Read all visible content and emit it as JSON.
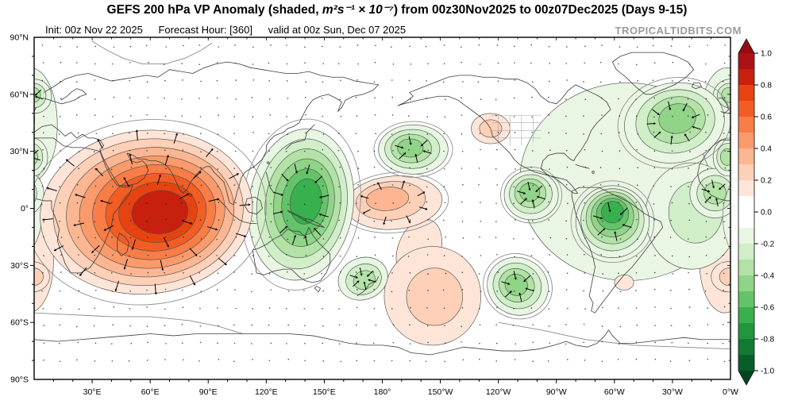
{
  "header": {
    "title_prefix": "GEFS 200 hPa VP Anomaly (shaded, ",
    "title_math": "m²s⁻¹ × 10⁻⁷",
    "title_suffix": ") from 00z30Nov2025 to 00z07Dec2025 (Days 9-15)",
    "init_label": "Init: 00z Nov 22 2025",
    "forecast_hour_label": "Forecast Hour: [360]",
    "valid_label": "valid at 00z Sun, Dec 07 2025",
    "watermark": "TROPICALTIDBITS.COM"
  },
  "chart_data": {
    "type": "heatmap",
    "title": "GEFS 200 hPa VP Anomaly (shaded) from 00z30Nov2025 to 00z07Dec2025 (Days 9-15)",
    "variable": "200 hPa velocity potential anomaly",
    "units": "m2 s-1 x 10-7",
    "projection": "cylindrical, longitudes 0E-360E, latitudes 90N-90S",
    "lat_ticks": [
      {
        "value": 90,
        "label": "90°N"
      },
      {
        "value": 60,
        "label": "60°N"
      },
      {
        "value": 30,
        "label": "30°N"
      },
      {
        "value": 0,
        "label": "0°"
      },
      {
        "value": -30,
        "label": "30°S"
      },
      {
        "value": -60,
        "label": "60°S"
      },
      {
        "value": -90,
        "label": "90°S"
      }
    ],
    "lon_ticks": [
      {
        "value": 30,
        "label": "30°E"
      },
      {
        "value": 60,
        "label": "60°E"
      },
      {
        "value": 90,
        "label": "90°E"
      },
      {
        "value": 120,
        "label": "120°E"
      },
      {
        "value": 150,
        "label": "150°E"
      },
      {
        "value": 180,
        "label": "180°"
      },
      {
        "value": 210,
        "label": "150°W"
      },
      {
        "value": 240,
        "label": "120°W"
      },
      {
        "value": 270,
        "label": "90°W"
      },
      {
        "value": 300,
        "label": "60°W"
      },
      {
        "value": 330,
        "label": "30°W"
      },
      {
        "value": 360,
        "label": "0°W"
      }
    ],
    "colorbar": {
      "min": -1.0,
      "max": 1.0,
      "step": 0.1,
      "tick_labels": [
        "1.0",
        "0.8",
        "0.6",
        "0.4",
        "0.2",
        "0.0",
        "-0.2",
        "-0.4",
        "-0.6",
        "-0.8",
        "-1.0"
      ],
      "positive_colors": [
        "#fee5d8",
        "#fdd0b7",
        "#fcb692",
        "#fb9b6b",
        "#f97d46",
        "#f25d24",
        "#e64310",
        "#c8200e",
        "#ad1016"
      ],
      "negative_colors": [
        "#e8f6e3",
        "#d0eec8",
        "#b2e2a6",
        "#8fd487",
        "#63c368",
        "#38b04d",
        "#21963f",
        "#117a33",
        "#085e28"
      ],
      "positive_arrow_color": "#950c12",
      "negative_arrow_color": "#03441d",
      "zero_color": "#ffffff"
    },
    "anomaly_centers": [
      {
        "name": "indian-ocean-positive",
        "sign": 1,
        "peak": 0.85,
        "outer": {
          "lon": 58,
          "lat": -2,
          "rx": 55,
          "ry": 43,
          "rot": -6
        },
        "core": {
          "lon": 66,
          "lat": -2
        }
      },
      {
        "name": "south-africa-edge-positive",
        "sign": 1,
        "peak": 0.15,
        "outer": {
          "lon": -3,
          "lat": -28,
          "rx": 13,
          "ry": 27,
          "rot": 0
        },
        "core": {
          "lon": -3,
          "lat": -28
        }
      },
      {
        "name": "dateline-positive",
        "sign": 1,
        "peak": 0.35,
        "outer": {
          "lon": 186,
          "lat": 3,
          "rx": 25,
          "ry": 14,
          "rot": -5
        },
        "core": {
          "lon": 181,
          "lat": 6
        }
      },
      {
        "name": "south-pacific-bridge-positive",
        "sign": 1,
        "peak": 0.15,
        "outer": {
          "lon": 199,
          "lat": -22,
          "rx": 11,
          "ry": 17,
          "rot": 20
        },
        "core": {
          "lon": 199,
          "lat": -22
        }
      },
      {
        "name": "south-pacific-positive",
        "sign": 1,
        "peak": 0.25,
        "outer": {
          "lon": 206,
          "lat": -46,
          "rx": 25,
          "ry": 26,
          "rot": 0
        },
        "core": {
          "lon": 208,
          "lat": -47
        }
      },
      {
        "name": "western-us-positive",
        "sign": 1,
        "peak": 0.25,
        "outer": {
          "lon": 236,
          "lat": 42,
          "rx": 10,
          "ry": 8,
          "rot": 0
        },
        "core": {
          "lon": 236,
          "lat": 42
        }
      },
      {
        "name": "uruguay-positive",
        "sign": 1,
        "peak": 0.15,
        "outer": {
          "lon": 305,
          "lat": -39,
          "rx": 5,
          "ry": 4,
          "rot": 0
        },
        "core": {
          "lon": 305,
          "lat": -39
        }
      },
      {
        "name": "south-atlantic-positive",
        "sign": 1,
        "peak": 0.25,
        "outer": {
          "lon": 359,
          "lat": -36,
          "rx": 9,
          "ry": 8,
          "rot": 0
        },
        "core": {
          "lon": 360,
          "lat": -36
        }
      },
      {
        "name": "maritime-continent-negative",
        "sign": -1,
        "peak": 0.65,
        "outer": {
          "lon": 138,
          "lat": 2,
          "rx": 27,
          "ry": 40,
          "rot": 8
        },
        "core": {
          "lon": 141,
          "lat": 4
        }
      },
      {
        "name": "new-zealand-negative",
        "sign": -1,
        "peak": 0.35,
        "outer": {
          "lon": 170,
          "lat": -37,
          "rx": 13,
          "ry": 11,
          "rot": -20
        },
        "core": {
          "lon": 171,
          "lat": -38
        }
      },
      {
        "name": "north-pacific-negative",
        "sign": -1,
        "peak": 0.45,
        "outer": {
          "lon": 196,
          "lat": 31,
          "rx": 18,
          "ry": 13,
          "rot": 0
        },
        "core": {
          "lon": 194,
          "lat": 32
        }
      },
      {
        "name": "east-pacific-negative",
        "sign": -1,
        "peak": 0.45,
        "outer": {
          "lon": 257,
          "lat": 7,
          "rx": 14,
          "ry": 13,
          "rot": 0
        },
        "core": {
          "lon": 256,
          "lat": 9
        }
      },
      {
        "name": "southeast-pacific-negative",
        "sign": -1,
        "peak": 0.45,
        "outer": {
          "lon": 250,
          "lat": -41,
          "rx": 16,
          "ry": 15,
          "rot": 25
        },
        "core": {
          "lon": 249,
          "lat": -40
        }
      },
      {
        "name": "south-america-negative",
        "sign": -1,
        "peak": 0.65,
        "outer": {
          "lon": 299,
          "lat": -7,
          "rx": 19,
          "ry": 19,
          "rot": 0
        },
        "core": {
          "lon": 299,
          "lat": -1
        }
      },
      {
        "name": "north-atlantic-negative",
        "sign": -1,
        "peak": 0.45,
        "outer": {
          "lon": 331,
          "lat": 45,
          "rx": 26,
          "ry": 21,
          "rot": -10
        },
        "core": {
          "lon": 333,
          "lat": 48
        }
      },
      {
        "name": "atlantic-americas-broad-negative",
        "sign": -1,
        "peak": 0.15,
        "outer": {
          "lon": 307,
          "lat": 14,
          "rx": 56,
          "ry": 52,
          "rot": 0
        },
        "core": {
          "lon": 307,
          "lat": 14
        }
      },
      {
        "name": "west-africa-negative",
        "sign": -1,
        "peak": 0.35,
        "outer": {
          "lon": 352,
          "lat": 8,
          "rx": 13,
          "ry": 13,
          "rot": 0
        },
        "core": {
          "lon": 352,
          "lat": 8
        }
      },
      {
        "name": "tropical-atlantic-negative",
        "sign": -1,
        "peak": 0.25,
        "outer": {
          "lon": 340,
          "lat": -4,
          "rx": 24,
          "ry": 28,
          "rot": 0
        },
        "core": {
          "lon": 344,
          "lat": 0
        }
      },
      {
        "name": "europe-edge-negative",
        "sign": -1,
        "peak": 0.15,
        "outer": {
          "lon": -2,
          "lat": 44,
          "rx": 14,
          "ry": 30,
          "rot": 0
        },
        "core": {
          "lon": -2,
          "lat": 44
        }
      },
      {
        "name": "scandinavia-negative",
        "sign": -1,
        "peak": 0.35,
        "outer": {
          "lon": 0,
          "lat": 59,
          "rx": 9,
          "ry": 9,
          "rot": 0
        },
        "core": {
          "lon": -1,
          "lat": 60
        }
      },
      {
        "name": "northwest-africa-negative",
        "sign": -1,
        "peak": 0.35,
        "outer": {
          "lon": -1,
          "lat": 27,
          "rx": 8,
          "ry": 10,
          "rot": 0
        },
        "core": {
          "lon": -2,
          "lat": 27
        }
      }
    ]
  }
}
